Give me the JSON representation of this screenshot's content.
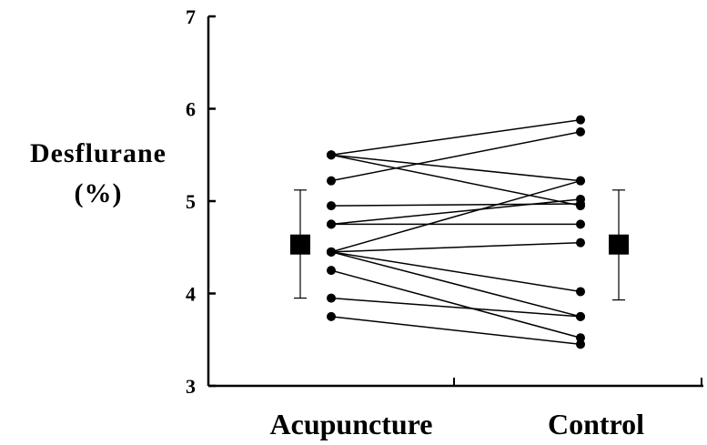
{
  "chart_data": {
    "type": "scatter",
    "ylabel_lines": [
      "Desflurane",
      "(%)"
    ],
    "ylim": [
      3,
      7
    ],
    "y_ticks": [
      "3",
      "4",
      "5",
      "6",
      "7"
    ],
    "categories": [
      "Acupuncture",
      "Control"
    ],
    "paired_points": [
      {
        "acupuncture": 5.5,
        "control": 5.88
      },
      {
        "acupuncture": 5.5,
        "control": 5.22
      },
      {
        "acupuncture": 5.5,
        "control": 4.95
      },
      {
        "acupuncture": 5.22,
        "control": 5.75
      },
      {
        "acupuncture": 4.95,
        "control": 4.97
      },
      {
        "acupuncture": 4.75,
        "control": 5.02
      },
      {
        "acupuncture": 4.75,
        "control": 4.75
      },
      {
        "acupuncture": 4.45,
        "control": 5.22
      },
      {
        "acupuncture": 4.45,
        "control": 4.55
      },
      {
        "acupuncture": 4.45,
        "control": 4.02
      },
      {
        "acupuncture": 4.45,
        "control": 3.75
      },
      {
        "acupuncture": 4.25,
        "control": 3.52
      },
      {
        "acupuncture": 3.95,
        "control": 3.75
      },
      {
        "acupuncture": 3.75,
        "control": 3.45
      }
    ],
    "summary": [
      {
        "group": "Acupuncture",
        "mean": 4.53,
        "upper": 5.12,
        "lower": 3.95
      },
      {
        "group": "Control",
        "mean": 4.53,
        "upper": 5.12,
        "lower": 3.93
      }
    ],
    "grid": false,
    "legend": "none"
  }
}
